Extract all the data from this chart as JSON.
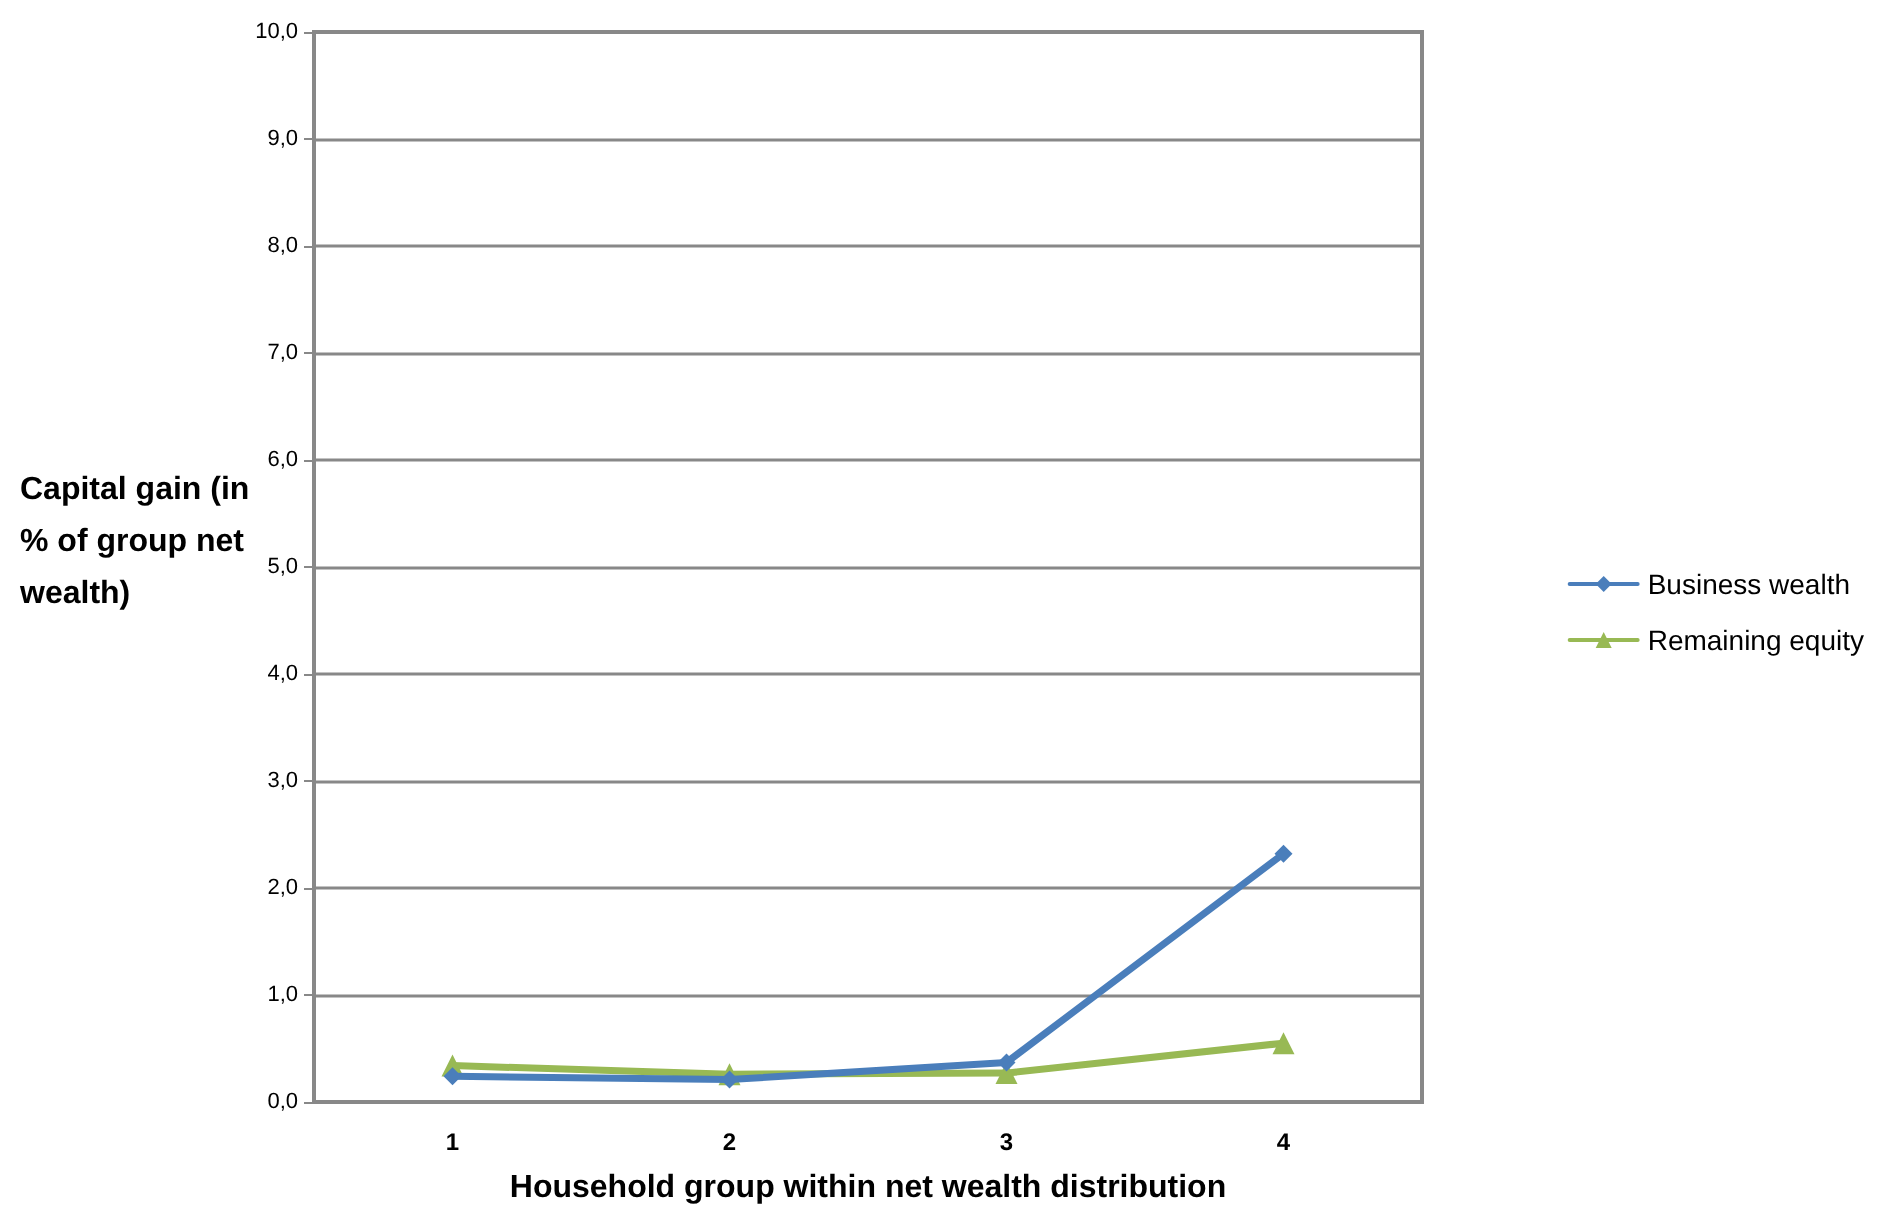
{
  "chart_data": {
    "type": "line",
    "xlabel": "Household group within net wealth distribution",
    "ylabel": "Capital gain (in % of group net wealth)",
    "categories": [
      "1",
      "2",
      "3",
      "4"
    ],
    "series": [
      {
        "name": "Business wealth",
        "color": "#4a7ebb",
        "marker": "diamond",
        "values": [
          0.24,
          0.21,
          0.37,
          2.32
        ]
      },
      {
        "name": "Remaining equity",
        "color": "#98b954",
        "marker": "triangle",
        "values": [
          0.34,
          0.26,
          0.27,
          0.55
        ]
      }
    ],
    "ylim": [
      0,
      10
    ],
    "yticks": [
      {
        "value": 0,
        "label": "0,0"
      },
      {
        "value": 1,
        "label": "1,0"
      },
      {
        "value": 2,
        "label": "2,0"
      },
      {
        "value": 3,
        "label": "3,0"
      },
      {
        "value": 4,
        "label": "4,0"
      },
      {
        "value": 5,
        "label": "5,0"
      },
      {
        "value": 6,
        "label": "6,0"
      },
      {
        "value": 7,
        "label": "7,0"
      },
      {
        "value": 8,
        "label": "8,0"
      },
      {
        "value": 9,
        "label": "9,0"
      },
      {
        "value": 10,
        "label": "10,0"
      }
    ],
    "grid": "y",
    "legend": "right",
    "line_style": "solid"
  }
}
